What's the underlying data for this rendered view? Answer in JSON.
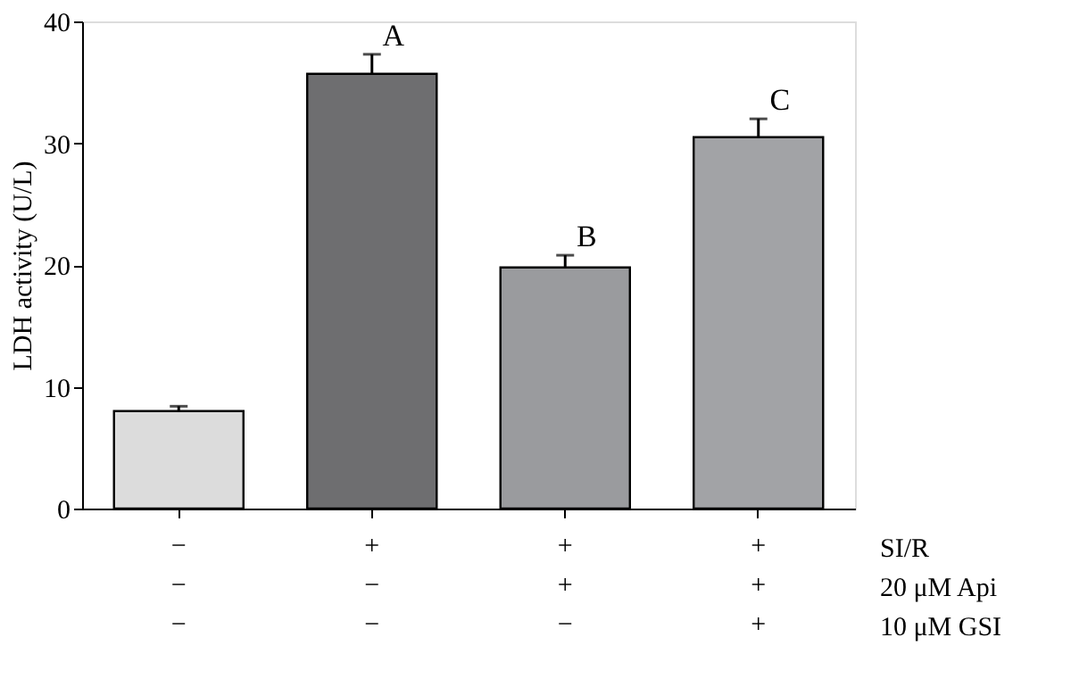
{
  "chart_data": {
    "type": "bar",
    "ylabel": "LDH activity (U/L)",
    "categories": [
      "−\n−\n−",
      "+\n−\n−",
      "+\n+\n−",
      "+\n+\n+"
    ],
    "values": [
      8.0,
      35.7,
      19.8,
      30.5
    ],
    "errors": [
      0.4,
      1.6,
      1.0,
      1.5
    ],
    "colors": [
      "#dcdcdc",
      "#6e6e70",
      "#9a9b9e",
      "#a2a3a6"
    ],
    "ylim": [
      0,
      40
    ],
    "yticks": [
      0,
      10,
      20,
      30,
      40
    ],
    "grid": false,
    "annotations": [
      {
        "text": "A",
        "x": "+\n−\n−",
        "y": 37.3
      },
      {
        "text": "B",
        "x": "+\n+\n−",
        "y": 20.8
      },
      {
        "text": "C",
        "x": "+\n+\n+",
        "y": 32.0
      },
      "SI/R",
      "20 μM Api",
      "10 μM GSI"
    ]
  }
}
